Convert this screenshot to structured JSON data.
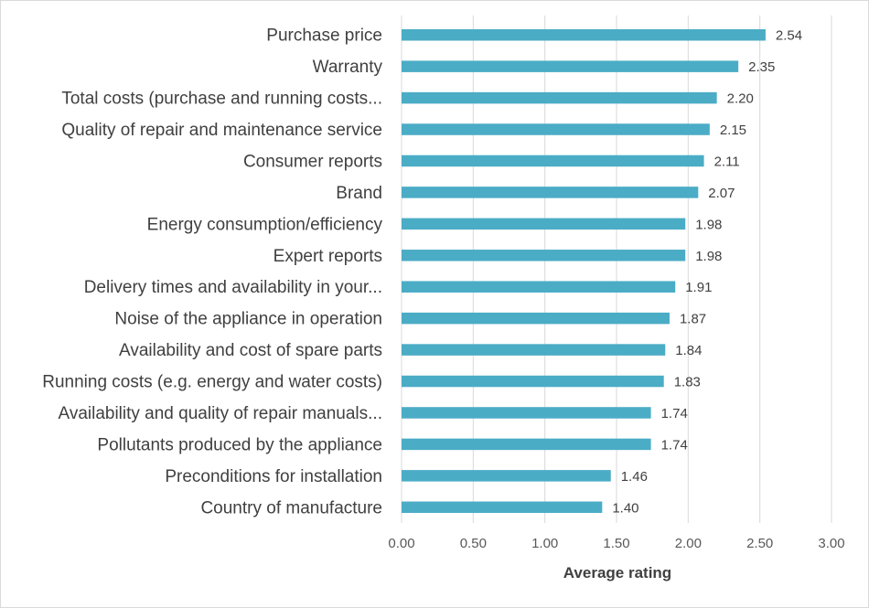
{
  "chart_data": {
    "type": "bar",
    "orientation": "horizontal",
    "title": "",
    "xlabel": "Average rating",
    "ylabel": "",
    "xlim": [
      0,
      3
    ],
    "x_ticks": [
      "0.00",
      "0.50",
      "1.00",
      "1.50",
      "2.00",
      "2.50",
      "3.00"
    ],
    "grid": "vertical major gridlines",
    "bar_color": "#4BACC6",
    "categories": [
      "Purchase price",
      "Warranty",
      "Total costs (purchase and running costs...",
      "Quality of repair and maintenance service",
      "Consumer reports",
      "Brand",
      "Energy consumption/efficiency",
      "Expert reports",
      "Delivery times and availability in your...",
      "Noise of the appliance in operation",
      "Availability and cost of spare parts",
      "Running costs (e.g. energy and water costs)",
      "Availability and quality of repair manuals...",
      "Pollutants produced by the appliance",
      "Preconditions for installation",
      "Country of manufacture"
    ],
    "values": [
      2.54,
      2.35,
      2.2,
      2.15,
      2.11,
      2.07,
      1.98,
      1.98,
      1.91,
      1.87,
      1.84,
      1.83,
      1.74,
      1.74,
      1.46,
      1.4
    ],
    "value_labels": [
      "2.54",
      "2.35",
      "2.20",
      "2.15",
      "2.11",
      "2.07",
      "1.98",
      "1.98",
      "1.91",
      "1.87",
      "1.84",
      "1.83",
      "1.74",
      "1.74",
      "1.46",
      "1.40"
    ]
  }
}
